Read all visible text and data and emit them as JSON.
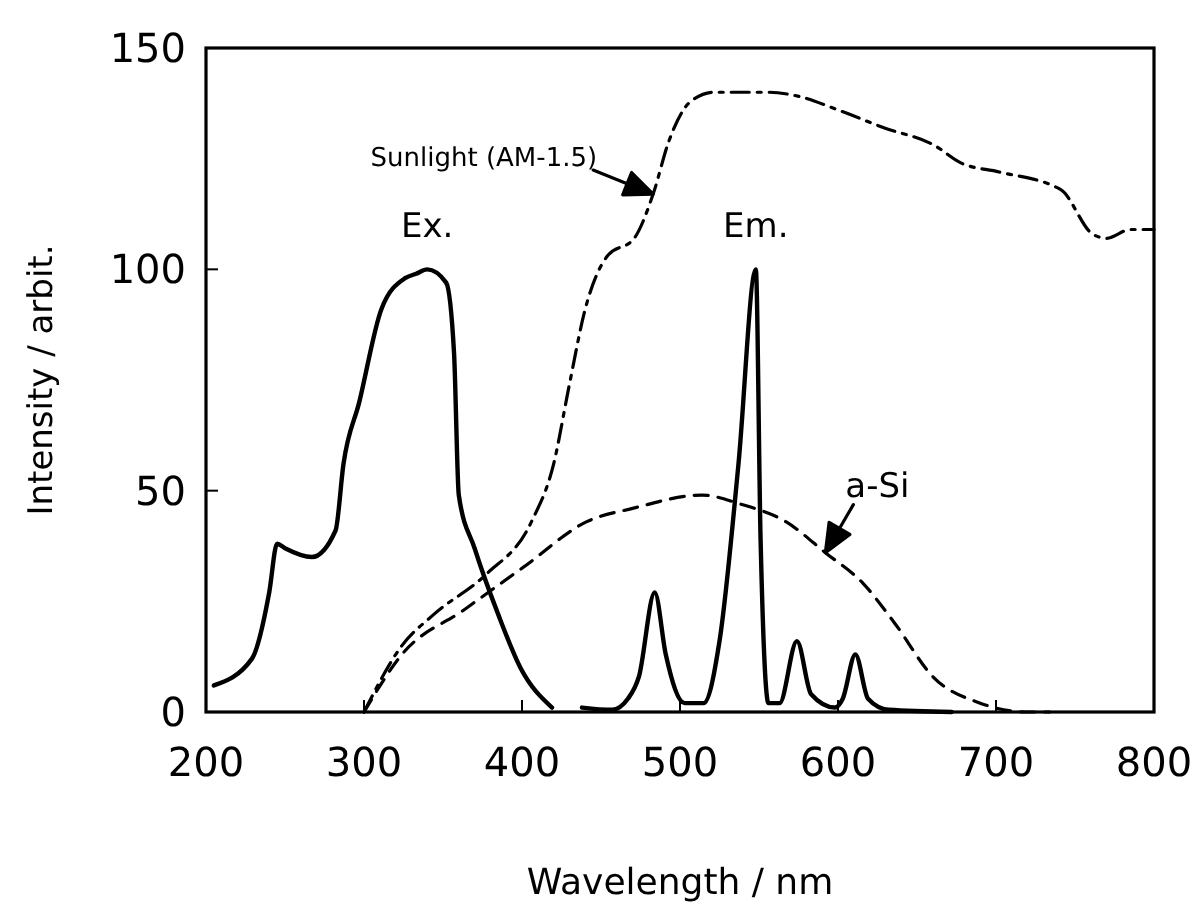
{
  "chart_data": {
    "type": "line",
    "xlabel": "Wavelength / nm",
    "ylabel": "Intensity / arbit.",
    "xlim": [
      200,
      800
    ],
    "xticks": [
      200,
      300,
      400,
      500,
      600,
      700,
      800
    ],
    "ylim": [
      0,
      150
    ],
    "yticks": [
      0,
      50,
      100,
      150
    ],
    "grid": false,
    "marker": "none",
    "series": [
      {
        "name": "Ex.",
        "color": "#000000",
        "line_style": "solid",
        "x": [
          205,
          229,
          240,
          245,
          250,
          267,
          282,
          287,
          297,
          311,
          326,
          333,
          340,
          352,
          357,
          360,
          370,
          385,
          399,
          419
        ],
        "values": [
          6,
          12,
          27,
          38,
          37,
          35,
          41,
          56,
          70,
          91,
          98,
          99,
          100,
          97,
          81,
          49,
          37,
          22,
          10,
          1
        ]
      },
      {
        "name": "Em.",
        "color": "#000000",
        "line_style": "solid",
        "x": [
          438,
          457,
          467,
          474,
          484,
          491,
          503,
          515,
          525,
          537,
          548,
          551,
          556,
          563,
          574,
          583,
          598,
          603,
          611,
          619,
          632,
          672
        ],
        "values": [
          1,
          0.5,
          3,
          8,
          27,
          13,
          2,
          2,
          16,
          56,
          100,
          39,
          2,
          2,
          16,
          4,
          1,
          3,
          13,
          3,
          0.5,
          0
        ]
      },
      {
        "name": "Sunlight (AM-1.5)",
        "color": "#000000",
        "line_style": "dashdot",
        "x": [
          300,
          324,
          344,
          377,
          406,
          420,
          430,
          440,
          454,
          471,
          483,
          493,
          507,
          522,
          556,
          576,
          600,
          629,
          661,
          678,
          702,
          741,
          761,
          770,
          785,
          800
        ],
        "values": [
          0,
          15,
          22,
          31,
          43,
          56,
          74,
          91,
          103,
          107,
          117,
          129,
          138,
          140,
          140,
          139,
          136,
          132,
          128,
          124,
          122,
          118,
          108,
          107,
          109,
          109
        ]
      },
      {
        "name": "a-Si",
        "color": "#000000",
        "line_style": "dashed",
        "x": [
          300,
          324,
          363,
          402,
          441,
          470,
          514,
          538,
          567,
          592,
          616,
          636,
          660,
          690,
          719,
          734
        ],
        "values": [
          0,
          13,
          23,
          33,
          43,
          46,
          49,
          47,
          43,
          36,
          29,
          20,
          8,
          2,
          0,
          0
        ]
      }
    ]
  }
}
